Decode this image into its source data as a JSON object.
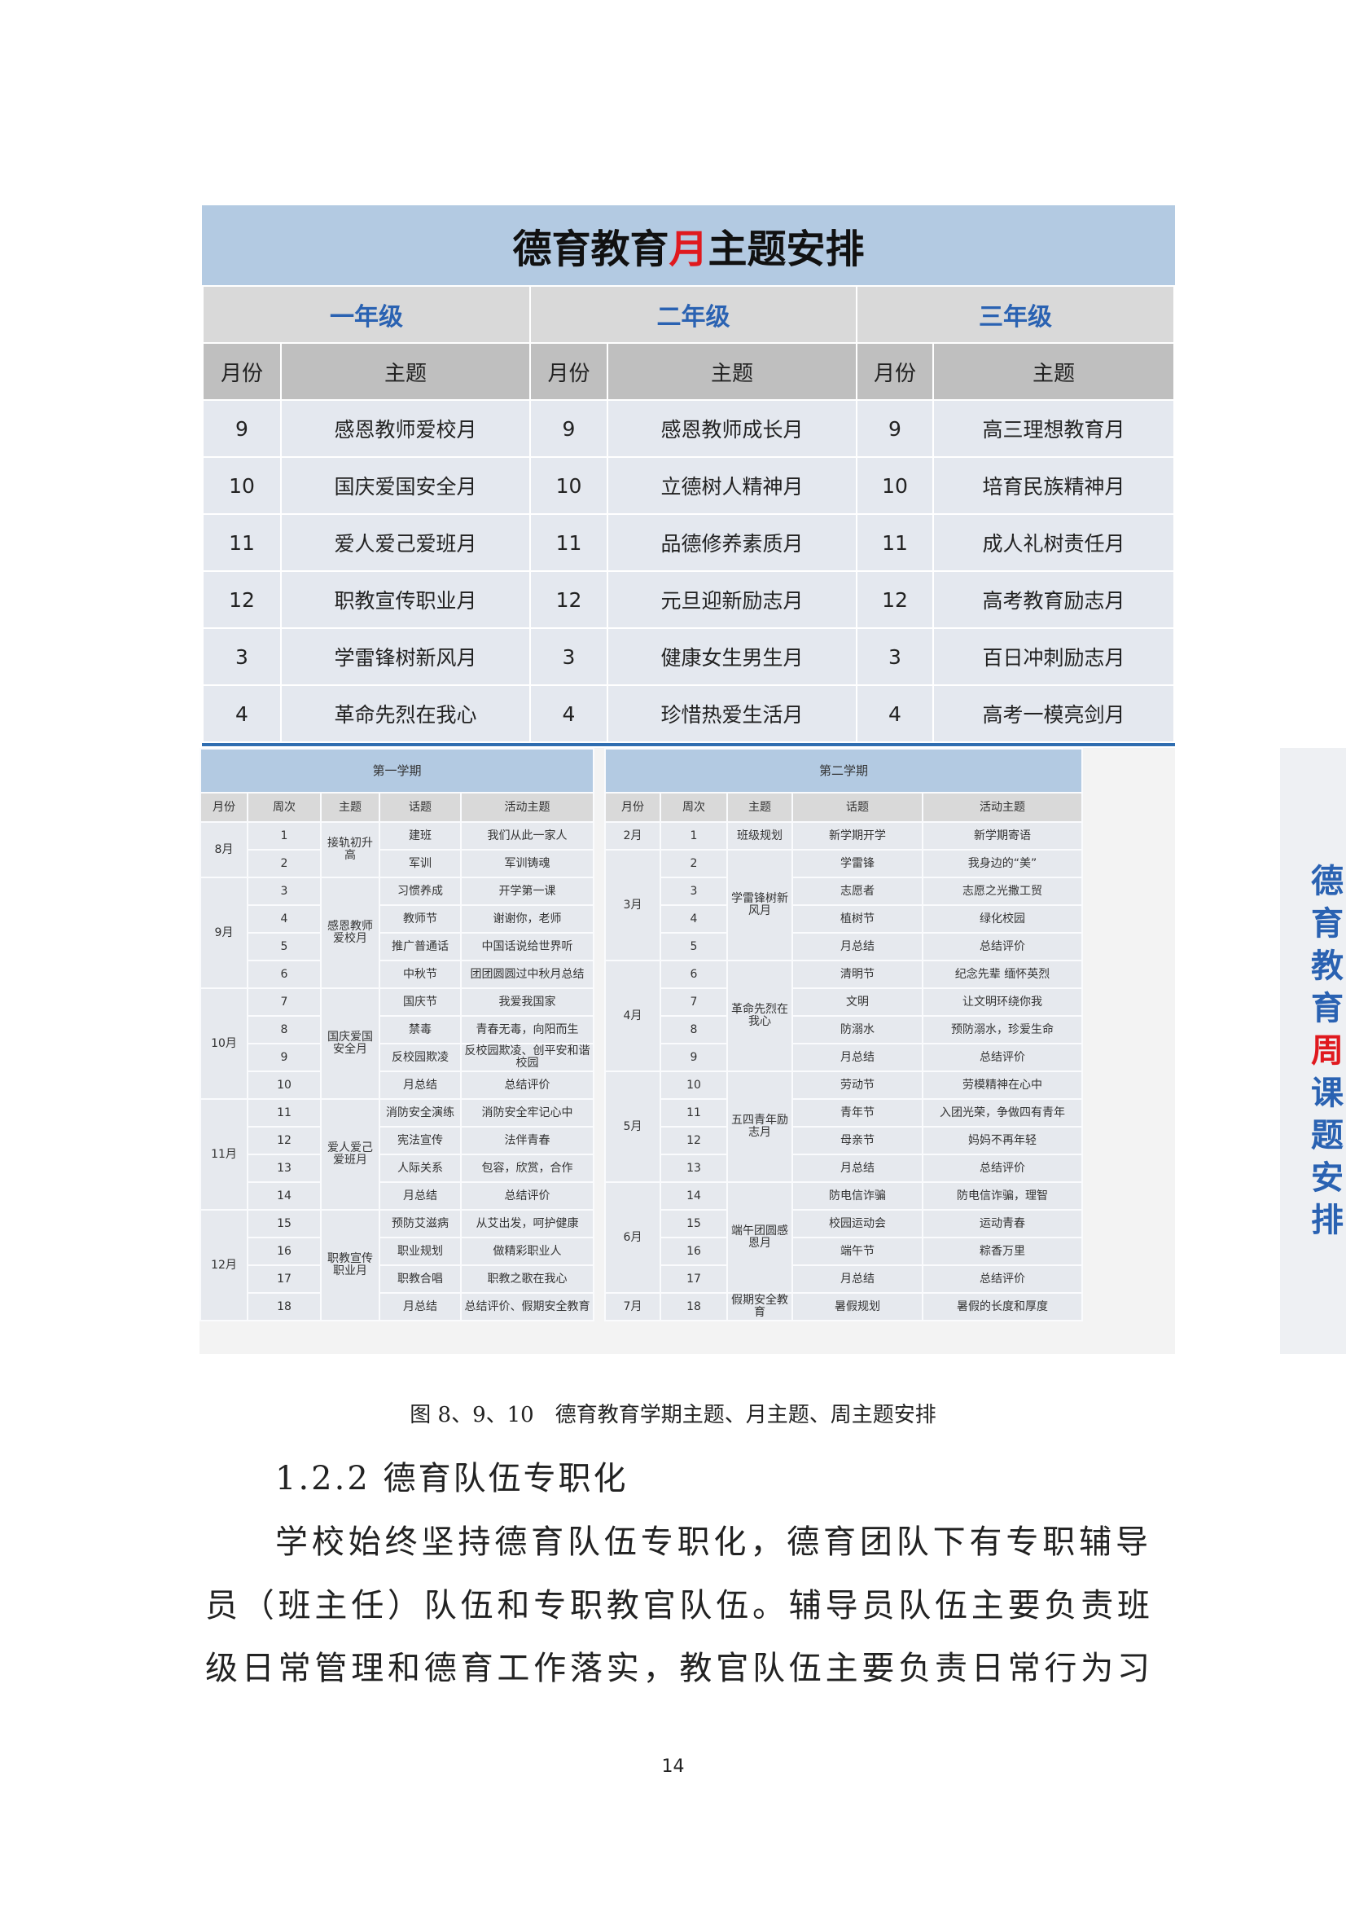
{
  "month_table": {
    "title_pre": "德育教育",
    "title_hl": "月",
    "title_post": "主题安排",
    "grades": [
      "一年级",
      "二年级",
      "三年级"
    ],
    "col_month": "月份",
    "col_theme": "主题",
    "rows": [
      [
        "9",
        "感恩教师爱校月",
        "9",
        "感恩教师成长月",
        "9",
        "高三理想教育月"
      ],
      [
        "10",
        "国庆爱国安全月",
        "10",
        "立德树人精神月",
        "10",
        "培育民族精神月"
      ],
      [
        "11",
        "爱人爱己爱班月",
        "11",
        "品德修养素质月",
        "11",
        "成人礼树责任月"
      ],
      [
        "12",
        "职教宣传职业月",
        "12",
        "元旦迎新励志月",
        "12",
        "高考教育励志月"
      ],
      [
        "3",
        "学雷锋树新风月",
        "3",
        "健康女生男生月",
        "3",
        "百日冲刺励志月"
      ],
      [
        "4",
        "革命先烈在我心",
        "4",
        "珍惜热爱生活月",
        "4",
        "高考一模亮剑月"
      ]
    ]
  },
  "week_tables": {
    "headers": [
      "月份",
      "周次",
      "主题",
      "话题",
      "活动主题"
    ],
    "semesters": [
      {
        "title": "第一学期",
        "months": [
          {
            "month": "8月",
            "theme": "接轨初升高",
            "weeks": [
              [
                "1",
                "建班",
                "我们从此一家人"
              ],
              [
                "2",
                "军训",
                "军训铸魂"
              ]
            ]
          },
          {
            "month": "9月",
            "theme": "感恩教师爱校月",
            "weeks": [
              [
                "3",
                "习惯养成",
                "开学第一课"
              ],
              [
                "4",
                "教师节",
                "谢谢你，老师"
              ],
              [
                "5",
                "推广普通话",
                "中国话说给世界听"
              ],
              [
                "6",
                "中秋节",
                "团团圆圆过中秋月总结"
              ]
            ]
          },
          {
            "month": "10月",
            "theme": "国庆爱国安全月",
            "weeks": [
              [
                "7",
                "国庆节",
                "我爱我国家"
              ],
              [
                "8",
                "禁毒",
                "青春无毒，向阳而生"
              ],
              [
                "9",
                "反校园欺凌",
                "反校园欺凌、创平安和谐校园"
              ],
              [
                "10",
                "月总结",
                "总结评价"
              ]
            ]
          },
          {
            "month": "11月",
            "theme": "爱人爱己爱班月",
            "weeks": [
              [
                "11",
                "消防安全演练",
                "消防安全牢记心中"
              ],
              [
                "12",
                "宪法宣传",
                "法伴青春"
              ],
              [
                "13",
                "人际关系",
                "包容，欣赏，合作"
              ],
              [
                "14",
                "月总结",
                "总结评价"
              ]
            ]
          },
          {
            "month": "12月",
            "theme": "职教宣传职业月",
            "weeks": [
              [
                "15",
                "预防艾滋病",
                "从艾出发，呵护健康"
              ],
              [
                "16",
                "职业规划",
                "做精彩职业人"
              ],
              [
                "17",
                "职教合唱",
                "职教之歌在我心"
              ],
              [
                "18",
                "月总结",
                "总结评价、假期安全教育"
              ]
            ]
          }
        ]
      },
      {
        "title": "第二学期",
        "months": [
          {
            "month": "2月",
            "theme": "班级规划",
            "weeks": [
              [
                "1",
                "新学期开学",
                "新学期寄语"
              ]
            ]
          },
          {
            "month": "3月",
            "theme": "学雷锋树新风月",
            "weeks": [
              [
                "2",
                "学雷锋",
                "我身边的“美”"
              ],
              [
                "3",
                "志愿者",
                "志愿之光撒工贸"
              ],
              [
                "4",
                "植树节",
                "绿化校园"
              ],
              [
                "5",
                "月总结",
                "总结评价"
              ]
            ]
          },
          {
            "month": "4月",
            "theme": "革命先烈在我心",
            "weeks": [
              [
                "6",
                "清明节",
                "纪念先辈 缅怀英烈"
              ],
              [
                "7",
                "文明",
                "让文明环绕你我"
              ],
              [
                "8",
                "防溺水",
                "预防溺水，珍爱生命"
              ],
              [
                "9",
                "月总结",
                "总结评价"
              ]
            ]
          },
          {
            "month": "5月",
            "theme": "五四青年励志月",
            "weeks": [
              [
                "10",
                "劳动节",
                "劳模精神在心中"
              ],
              [
                "11",
                "青年节",
                "入团光荣，争做四有青年"
              ],
              [
                "12",
                "母亲节",
                "妈妈不再年轻"
              ],
              [
                "13",
                "月总结",
                "总结评价"
              ]
            ]
          },
          {
            "month": "6月",
            "theme": "端午团圆感恩月",
            "weeks": [
              [
                "14",
                "防电信诈骗",
                "防电信诈骗，理智"
              ],
              [
                "15",
                "校园运动会",
                "运动青春"
              ],
              [
                "16",
                "端午节",
                "粽香万里"
              ],
              [
                "17",
                "月总结",
                "总结评价"
              ]
            ]
          },
          {
            "month": "7月",
            "theme": "假期安全教育",
            "weeks": [
              [
                "18",
                "暑假规划",
                "暑假的长度和厚度"
              ]
            ]
          }
        ]
      }
    ],
    "side_title": [
      "德",
      "育",
      "教",
      "育",
      "周",
      "课",
      "题",
      "安",
      "排"
    ],
    "side_highlight_index": 4
  },
  "caption": "图 8、9、10　德育教育学期主题、月主题、周主题安排",
  "heading": "1.2.2 德育队伍专职化",
  "paragraph_lines": [
    "学校始终坚持德育队伍专职化，德育团队下有专职辅导",
    "员（班主任）队伍和专职教官队伍。辅导员队伍主要负责班",
    "级日常管理和德育工作落实，教官队伍主要负责日常行为习"
  ],
  "page_number": "14",
  "colors": {
    "accent_blue": "#2a62b2",
    "highlight_red": "#e0191e",
    "header_band": "#b3cae2"
  }
}
